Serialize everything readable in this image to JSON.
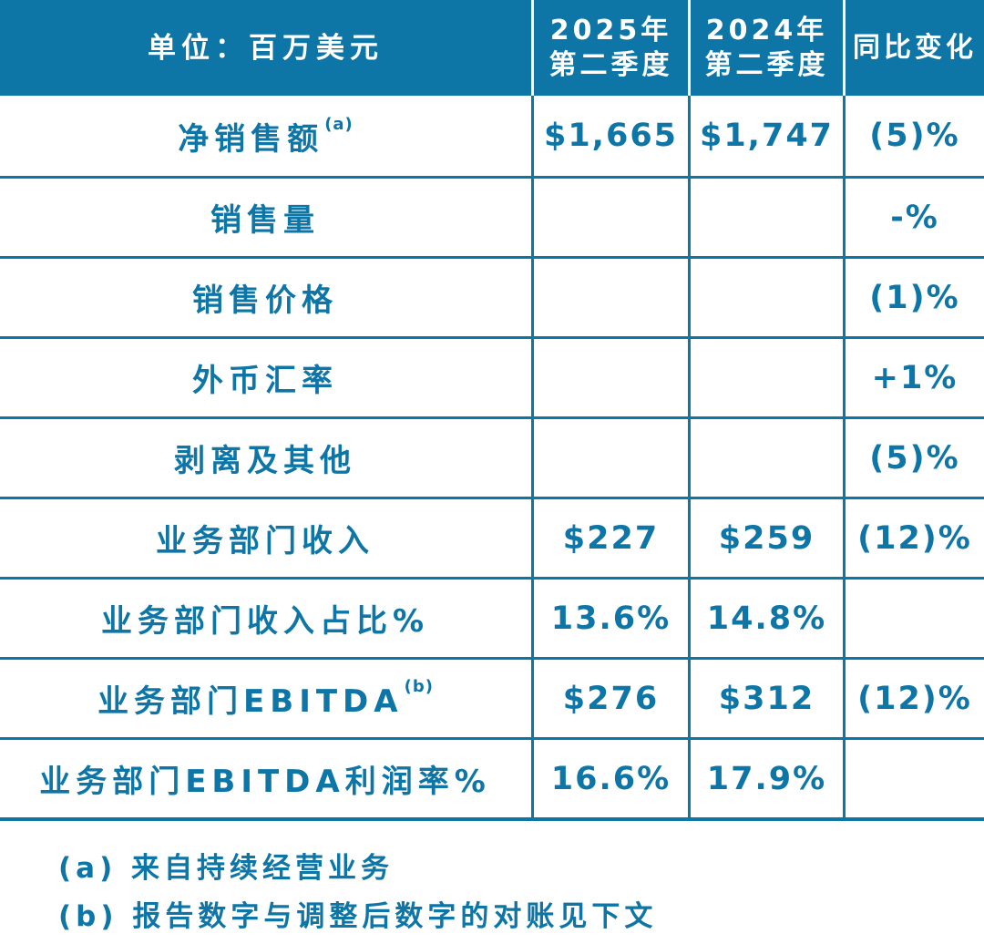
{
  "colors": {
    "primary_blue": "#0E75A7",
    "header_text": "#FFFFFF",
    "background": "#FFFFFF"
  },
  "table": {
    "header": {
      "unit_label": "单位：百万美元",
      "col_2025": {
        "line1": "2025年",
        "line2": "第二季度"
      },
      "col_2024": {
        "line1": "2024年",
        "line2": "第二季度"
      },
      "col_yoy": "同比变化"
    },
    "rows": [
      {
        "label": "净销售额",
        "sup": "(a)",
        "q2_2025": "$1,665",
        "q2_2024": "$1,747",
        "yoy": "(5)%"
      },
      {
        "label": "销售量",
        "sup": "",
        "q2_2025": "",
        "q2_2024": "",
        "yoy": "-%"
      },
      {
        "label": "销售价格",
        "sup": "",
        "q2_2025": "",
        "q2_2024": "",
        "yoy": "(1)%"
      },
      {
        "label": "外币汇率",
        "sup": "",
        "q2_2025": "",
        "q2_2024": "",
        "yoy": "+1%"
      },
      {
        "label": "剥离及其他",
        "sup": "",
        "q2_2025": "",
        "q2_2024": "",
        "yoy": "(5)%"
      },
      {
        "label": "业务部门收入",
        "sup": "",
        "q2_2025": "$227",
        "q2_2024": "$259",
        "yoy": "(12)%"
      },
      {
        "label": "业务部门收入占比%",
        "sup": "",
        "q2_2025": "13.6%",
        "q2_2024": "14.8%",
        "yoy": ""
      },
      {
        "label": "业务部门EBITDA",
        "sup": "(b)",
        "q2_2025": "$276",
        "q2_2024": "$312",
        "yoy": "(12)%"
      },
      {
        "label": "业务部门EBITDA利润率%",
        "sup": "",
        "q2_2025": "16.6%",
        "q2_2024": "17.9%",
        "yoy": ""
      }
    ],
    "footnotes": {
      "a": "(a) 来自持续经营业务",
      "b": "(b) 报告数字与调整后数字的对账见下文"
    }
  },
  "chart_data": {
    "type": "table",
    "title": "单位：百万美元",
    "columns": [
      "单位：百万美元",
      "2025年第二季度",
      "2024年第二季度",
      "同比变化"
    ],
    "rows": [
      [
        "净销售额(a)",
        "$1,665",
        "$1,747",
        "(5)%"
      ],
      [
        "销售量",
        "",
        "",
        "-%"
      ],
      [
        "销售价格",
        "",
        "",
        "(1)%"
      ],
      [
        "外币汇率",
        "",
        "",
        "+1%"
      ],
      [
        "剥离及其他",
        "",
        "",
        "(5)%"
      ],
      [
        "业务部门收入",
        "$227",
        "$259",
        "(12)%"
      ],
      [
        "业务部门收入占比%",
        "13.6%",
        "14.8%",
        ""
      ],
      [
        "业务部门EBITDA(b)",
        "$276",
        "$312",
        "(12)%"
      ],
      [
        "业务部门EBITDA利润率%",
        "16.6%",
        "17.9%",
        ""
      ]
    ],
    "footnotes": [
      "(a) 来自持续经营业务",
      "(b) 报告数字与调整后数字的对账见下文"
    ],
    "layout": {
      "header_bg": "#0E75A7",
      "body_text": "#0E75A7",
      "grid": "on"
    }
  }
}
